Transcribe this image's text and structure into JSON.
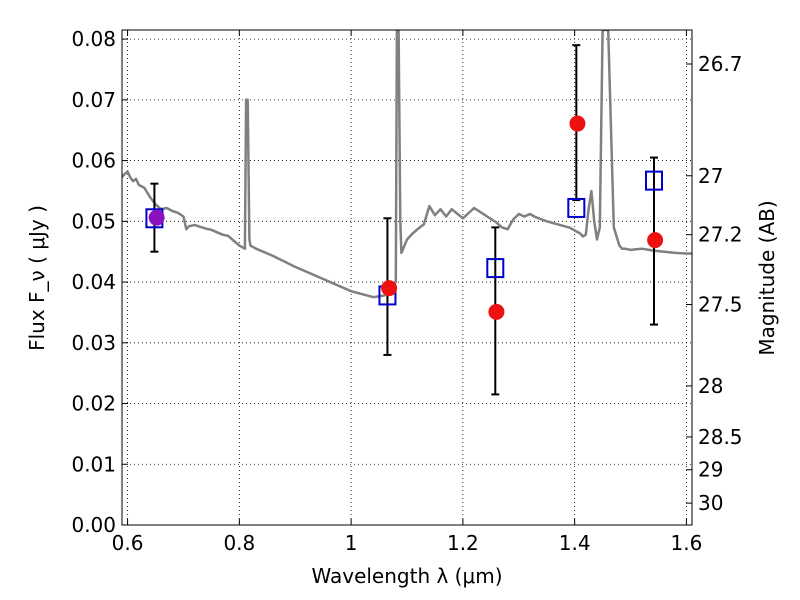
{
  "chart_data": {
    "type": "scatter",
    "xlabel": "Wavelength λ (μm)",
    "ylabel": "Flux F_ν ( μJy )",
    "ylabel_right": "Magnitude (AB)",
    "xlim": [
      0.59,
      1.61
    ],
    "ylim": [
      0.0,
      0.0815
    ],
    "grid": true,
    "x_ticks": [
      {
        "value": 0.6,
        "label": "0.6"
      },
      {
        "value": 0.8,
        "label": "0.8"
      },
      {
        "value": 1.0,
        "label": "1"
      },
      {
        "value": 1.2,
        "label": "1.2"
      },
      {
        "value": 1.4,
        "label": "1.4"
      },
      {
        "value": 1.6,
        "label": "1.6"
      }
    ],
    "y_ticks": [
      {
        "value": 0.0,
        "label": "0.00"
      },
      {
        "value": 0.01,
        "label": "0.01"
      },
      {
        "value": 0.02,
        "label": "0.02"
      },
      {
        "value": 0.03,
        "label": "0.03"
      },
      {
        "value": 0.04,
        "label": "0.04"
      },
      {
        "value": 0.05,
        "label": "0.05"
      },
      {
        "value": 0.06,
        "label": "0.06"
      },
      {
        "value": 0.07,
        "label": "0.07"
      },
      {
        "value": 0.08,
        "label": "0.08"
      }
    ],
    "right_ticks": [
      {
        "label": "26.7",
        "flux": 0.0759
      },
      {
        "label": "27",
        "flux": 0.0575
      },
      {
        "label": "27.2",
        "flux": 0.0478
      },
      {
        "label": "27.5",
        "flux": 0.0363
      },
      {
        "label": "28",
        "flux": 0.0229
      },
      {
        "label": "28.5",
        "flux": 0.0145
      },
      {
        "label": "29",
        "flux": 0.0091
      },
      {
        "label": "30",
        "flux": 0.0036
      }
    ],
    "series": [
      {
        "kind": "line",
        "color": "#808080",
        "x": [
          0.59,
          0.595,
          0.6,
          0.605,
          0.61,
          0.615,
          0.62,
          0.63,
          0.64,
          0.65,
          0.66,
          0.67,
          0.68,
          0.69,
          0.7,
          0.705,
          0.71,
          0.72,
          0.73,
          0.74,
          0.75,
          0.76,
          0.77,
          0.78,
          0.79,
          0.8,
          0.81,
          0.812,
          0.815,
          0.818,
          0.82,
          0.83,
          0.86,
          0.9,
          0.95,
          1.0,
          1.04,
          1.06,
          1.08,
          1.082,
          1.085,
          1.088,
          1.09,
          1.1,
          1.11,
          1.12,
          1.13,
          1.14,
          1.15,
          1.16,
          1.17,
          1.18,
          1.2,
          1.22,
          1.24,
          1.26,
          1.27,
          1.28,
          1.29,
          1.3,
          1.31,
          1.32,
          1.33,
          1.35,
          1.37,
          1.39,
          1.4,
          1.41,
          1.415,
          1.42,
          1.425,
          1.43,
          1.435,
          1.44,
          1.445,
          1.45,
          1.46,
          1.47,
          1.475,
          1.48,
          1.485,
          1.49,
          1.5,
          1.52,
          1.54,
          1.56,
          1.58,
          1.6,
          1.61
        ],
        "values": [
          0.0573,
          0.0578,
          0.0582,
          0.0572,
          0.0566,
          0.057,
          0.056,
          0.0555,
          0.054,
          0.0528,
          0.052,
          0.0522,
          0.0517,
          0.0514,
          0.0508,
          0.0487,
          0.0492,
          0.0494,
          0.0491,
          0.0488,
          0.0486,
          0.0482,
          0.0478,
          0.0476,
          0.0468,
          0.046,
          0.0455,
          0.07,
          0.07,
          0.047,
          0.046,
          0.0455,
          0.0443,
          0.0425,
          0.0405,
          0.0385,
          0.0375,
          0.0378,
          0.04,
          0.0815,
          0.0815,
          0.05,
          0.0448,
          0.047,
          0.048,
          0.0488,
          0.0495,
          0.0525,
          0.051,
          0.052,
          0.0508,
          0.052,
          0.0505,
          0.0522,
          0.051,
          0.0498,
          0.049,
          0.0487,
          0.0503,
          0.0512,
          0.0508,
          0.0512,
          0.0507,
          0.05,
          0.0495,
          0.049,
          0.0485,
          0.048,
          0.0475,
          0.0478,
          0.052,
          0.055,
          0.05,
          0.047,
          0.049,
          0.0815,
          0.0815,
          0.049,
          0.0475,
          0.046,
          0.0455,
          0.0455,
          0.0453,
          0.0455,
          0.0452,
          0.045,
          0.0448,
          0.0447,
          0.0447
        ]
      },
      {
        "kind": "errorbar",
        "color": "#000000",
        "x": [
          0.648,
          1.065,
          1.258,
          1.403,
          1.542
        ],
        "low": [
          0.045,
          0.028,
          0.0215,
          0.0535,
          0.033
        ],
        "high": [
          0.0562,
          0.0505,
          0.049,
          0.079,
          0.0605
        ]
      },
      {
        "kind": "open-square",
        "color": "#0000cc",
        "x": [
          0.648,
          1.065,
          1.258,
          1.403,
          1.542
        ],
        "values": [
          0.0505,
          0.0378,
          0.0423,
          0.0522,
          0.0567
        ]
      },
      {
        "kind": "filled-circle",
        "color": "#ee1111",
        "x": [
          0.652,
          1.068,
          1.26,
          1.405,
          1.544
        ],
        "values": [
          0.0506,
          0.039,
          0.0351,
          0.0661,
          0.0469
        ]
      }
    ]
  }
}
